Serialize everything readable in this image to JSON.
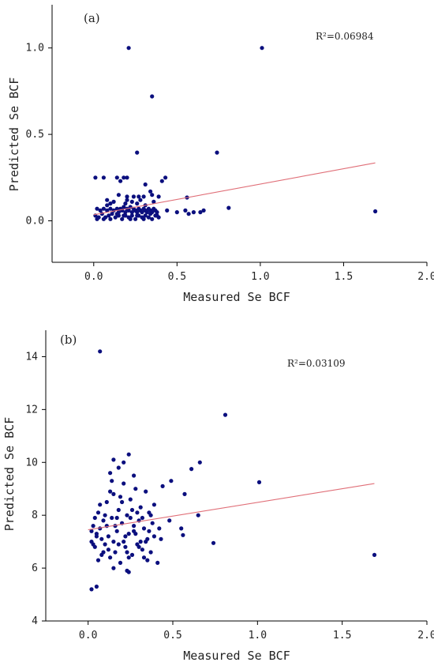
{
  "chart_data": [
    {
      "type": "scatter",
      "panel_label": "(a)",
      "annotation": "R²=0.06984",
      "xlabel": "Measured Se BCF",
      "ylabel": "Predicted Se BCF",
      "xlim": [
        -0.25,
        2.0
      ],
      "ylim": [
        -0.24,
        1.25
      ],
      "xticks": [
        0.0,
        0.5,
        1.0,
        1.5,
        2.0
      ],
      "xtick_labels": [
        "0.0",
        "0.5",
        "1.0",
        "1.5",
        "2.0"
      ],
      "yticks": [
        0.0,
        0.5,
        1.0
      ],
      "ytick_labels": [
        "0.0",
        "0.5",
        "1.0"
      ],
      "trendline": {
        "x": [
          0.0,
          1.69
        ],
        "y": [
          0.035,
          0.335
        ]
      },
      "points": [
        [
          0.21,
          1.0
        ],
        [
          1.01,
          1.0
        ],
        [
          0.35,
          0.72
        ],
        [
          0.26,
          0.395
        ],
        [
          0.74,
          0.395
        ],
        [
          0.01,
          0.25
        ],
        [
          0.06,
          0.25
        ],
        [
          0.14,
          0.25
        ],
        [
          0.18,
          0.25
        ],
        [
          0.2,
          0.25
        ],
        [
          0.16,
          0.23
        ],
        [
          0.43,
          0.25
        ],
        [
          0.41,
          0.23
        ],
        [
          0.31,
          0.21
        ],
        [
          0.34,
          0.17
        ],
        [
          0.35,
          0.15
        ],
        [
          0.15,
          0.15
        ],
        [
          0.2,
          0.14
        ],
        [
          0.24,
          0.14
        ],
        [
          0.27,
          0.14
        ],
        [
          0.3,
          0.14
        ],
        [
          0.39,
          0.14
        ],
        [
          0.56,
          0.135
        ],
        [
          0.1,
          0.1
        ],
        [
          0.19,
          0.1
        ],
        [
          0.23,
          0.11
        ],
        [
          0.26,
          0.1
        ],
        [
          0.31,
          0.09
        ],
        [
          0.08,
          0.09
        ],
        [
          0.02,
          0.07
        ],
        [
          0.04,
          0.06
        ],
        [
          0.06,
          0.07
        ],
        [
          0.08,
          0.06
        ],
        [
          0.1,
          0.07
        ],
        [
          0.12,
          0.06
        ],
        [
          0.14,
          0.07
        ],
        [
          0.15,
          0.05
        ],
        [
          0.16,
          0.07
        ],
        [
          0.17,
          0.06
        ],
        [
          0.18,
          0.08
        ],
        [
          0.19,
          0.05
        ],
        [
          0.2,
          0.07
        ],
        [
          0.21,
          0.06
        ],
        [
          0.22,
          0.08
        ],
        [
          0.23,
          0.05
        ],
        [
          0.24,
          0.07
        ],
        [
          0.25,
          0.06
        ],
        [
          0.26,
          0.05
        ],
        [
          0.27,
          0.07
        ],
        [
          0.28,
          0.06
        ],
        [
          0.29,
          0.05
        ],
        [
          0.3,
          0.07
        ],
        [
          0.31,
          0.06
        ],
        [
          0.32,
          0.05
        ],
        [
          0.33,
          0.07
        ],
        [
          0.34,
          0.06
        ],
        [
          0.35,
          0.05
        ],
        [
          0.36,
          0.07
        ],
        [
          0.37,
          0.06
        ],
        [
          0.38,
          0.05
        ],
        [
          0.01,
          0.03
        ],
        [
          0.03,
          0.02
        ],
        [
          0.05,
          0.04
        ],
        [
          0.07,
          0.02
        ],
        [
          0.09,
          0.03
        ],
        [
          0.11,
          0.04
        ],
        [
          0.13,
          0.02
        ],
        [
          0.15,
          0.03
        ],
        [
          0.17,
          0.01
        ],
        [
          0.19,
          0.03
        ],
        [
          0.21,
          0.02
        ],
        [
          0.23,
          0.03
        ],
        [
          0.25,
          0.01
        ],
        [
          0.27,
          0.03
        ],
        [
          0.29,
          0.02
        ],
        [
          0.31,
          0.03
        ],
        [
          0.33,
          0.02
        ],
        [
          0.35,
          0.01
        ],
        [
          0.37,
          0.03
        ],
        [
          0.39,
          0.02
        ],
        [
          0.02,
          0.01
        ],
        [
          0.06,
          0.01
        ],
        [
          0.1,
          0.01
        ],
        [
          0.14,
          0.04
        ],
        [
          0.18,
          0.03
        ],
        [
          0.22,
          0.01
        ],
        [
          0.26,
          0.03
        ],
        [
          0.3,
          0.01
        ],
        [
          0.34,
          0.04
        ],
        [
          0.38,
          0.03
        ],
        [
          0.44,
          0.06
        ],
        [
          0.5,
          0.05
        ],
        [
          0.55,
          0.06
        ],
        [
          0.57,
          0.04
        ],
        [
          0.6,
          0.05
        ],
        [
          0.64,
          0.05
        ],
        [
          0.66,
          0.06
        ],
        [
          0.81,
          0.075
        ],
        [
          1.69,
          0.055
        ],
        [
          0.08,
          0.12
        ],
        [
          0.12,
          0.11
        ],
        [
          0.2,
          0.12
        ],
        [
          0.28,
          0.12
        ],
        [
          0.36,
          0.11
        ]
      ]
    },
    {
      "type": "scatter",
      "panel_label": "(b)",
      "annotation": "R²=0.03109",
      "xlabel": "Measured Se BCF",
      "ylabel": "Predicted Se BCF",
      "xlim": [
        -0.25,
        2.0
      ],
      "ylim": [
        4,
        15
      ],
      "xticks": [
        0.0,
        0.5,
        1.0,
        1.5,
        2.0
      ],
      "xtick_labels": [
        "0.0",
        "0.5",
        "1.0",
        "1.5",
        "2.0"
      ],
      "yticks": [
        4,
        6,
        8,
        10,
        12,
        14
      ],
      "ytick_labels": [
        "4",
        "6",
        "8",
        "10",
        "12",
        "14"
      ],
      "trendline": {
        "x": [
          0.0,
          1.69
        ],
        "y": [
          7.45,
          9.2
        ]
      },
      "points": [
        [
          0.07,
          14.2
        ],
        [
          0.81,
          11.8
        ],
        [
          0.24,
          10.3
        ],
        [
          0.66,
          10.0
        ],
        [
          0.61,
          9.75
        ],
        [
          0.15,
          10.1
        ],
        [
          0.21,
          10.0
        ],
        [
          1.01,
          9.25
        ],
        [
          0.49,
          9.3
        ],
        [
          0.44,
          9.1
        ],
        [
          0.57,
          8.8
        ],
        [
          0.02,
          5.2
        ],
        [
          0.05,
          5.3
        ],
        [
          0.23,
          5.9
        ],
        [
          0.24,
          5.85
        ],
        [
          0.15,
          6.0
        ],
        [
          0.41,
          6.2
        ],
        [
          0.74,
          6.95
        ],
        [
          1.69,
          6.5
        ],
        [
          0.56,
          7.25
        ],
        [
          0.55,
          7.5
        ],
        [
          0.65,
          8.0
        ],
        [
          0.48,
          7.8
        ],
        [
          0.02,
          7.0
        ],
        [
          0.03,
          7.6
        ],
        [
          0.04,
          6.8
        ],
        [
          0.05,
          7.3
        ],
        [
          0.06,
          8.1
        ],
        [
          0.07,
          7.5
        ],
        [
          0.08,
          6.5
        ],
        [
          0.09,
          7.8
        ],
        [
          0.1,
          6.9
        ],
        [
          0.11,
          8.5
        ],
        [
          0.12,
          7.2
        ],
        [
          0.13,
          6.4
        ],
        [
          0.14,
          7.9
        ],
        [
          0.15,
          8.8
        ],
        [
          0.16,
          6.6
        ],
        [
          0.17,
          7.4
        ],
        [
          0.18,
          8.2
        ],
        [
          0.19,
          6.2
        ],
        [
          0.2,
          7.7
        ],
        [
          0.21,
          9.2
        ],
        [
          0.22,
          6.8
        ],
        [
          0.23,
          8.0
        ],
        [
          0.24,
          7.3
        ],
        [
          0.25,
          8.6
        ],
        [
          0.26,
          6.5
        ],
        [
          0.27,
          7.6
        ],
        [
          0.28,
          9.0
        ],
        [
          0.29,
          6.9
        ],
        [
          0.3,
          7.8
        ],
        [
          0.31,
          8.3
        ],
        [
          0.32,
          6.7
        ],
        [
          0.33,
          7.5
        ],
        [
          0.34,
          8.9
        ],
        [
          0.35,
          7.1
        ],
        [
          0.36,
          8.1
        ],
        [
          0.37,
          6.6
        ],
        [
          0.38,
          7.7
        ],
        [
          0.39,
          8.4
        ],
        [
          0.02,
          7.4
        ],
        [
          0.04,
          7.9
        ],
        [
          0.06,
          6.3
        ],
        [
          0.08,
          7.1
        ],
        [
          0.1,
          8.0
        ],
        [
          0.12,
          6.7
        ],
        [
          0.14,
          9.3
        ],
        [
          0.16,
          7.6
        ],
        [
          0.18,
          6.9
        ],
        [
          0.2,
          8.5
        ],
        [
          0.22,
          7.2
        ],
        [
          0.24,
          6.4
        ],
        [
          0.26,
          8.2
        ],
        [
          0.28,
          7.3
        ],
        [
          0.3,
          6.8
        ],
        [
          0.32,
          7.9
        ],
        [
          0.34,
          7.0
        ],
        [
          0.36,
          7.4
        ],
        [
          0.03,
          6.9
        ],
        [
          0.07,
          8.4
        ],
        [
          0.11,
          7.6
        ],
        [
          0.15,
          7.0
        ],
        [
          0.19,
          8.7
        ],
        [
          0.23,
          6.6
        ],
        [
          0.27,
          7.4
        ],
        [
          0.31,
          7.0
        ],
        [
          0.35,
          6.3
        ],
        [
          0.39,
          7.2
        ],
        [
          0.05,
          7.2
        ],
        [
          0.09,
          6.6
        ],
        [
          0.13,
          8.9
        ],
        [
          0.17,
          7.9
        ],
        [
          0.21,
          7.0
        ],
        [
          0.25,
          7.9
        ],
        [
          0.29,
          8.1
        ],
        [
          0.33,
          6.4
        ],
        [
          0.37,
          8.0
        ],
        [
          0.42,
          7.5
        ],
        [
          0.13,
          9.6
        ],
        [
          0.18,
          9.8
        ],
        [
          0.27,
          9.5
        ],
        [
          0.43,
          7.1
        ]
      ]
    }
  ]
}
